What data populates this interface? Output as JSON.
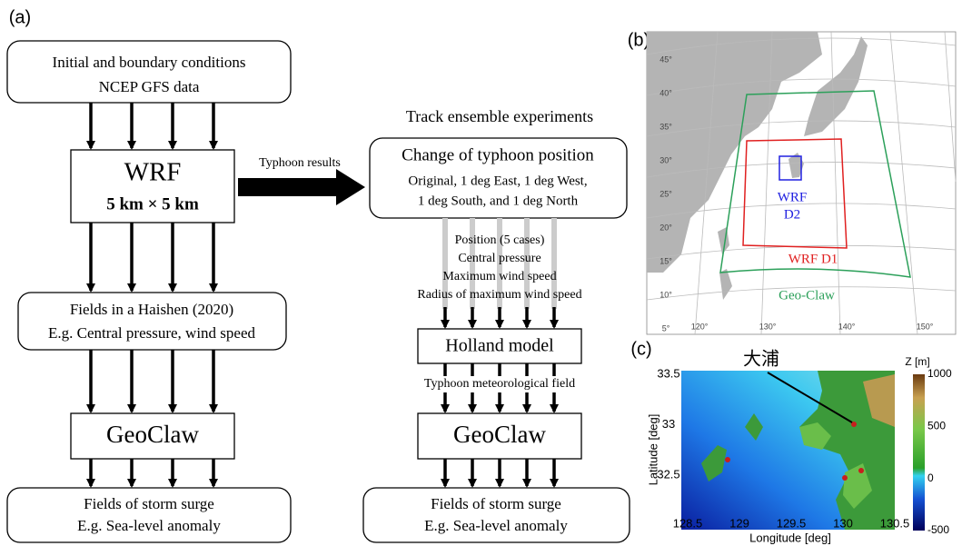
{
  "panels": {
    "a": "(a)",
    "b": "(b)",
    "c": "(c)"
  },
  "left_flow": {
    "inputs": [
      "Initial and boundary conditions",
      "NCEP GFS data"
    ],
    "wrf_title": "WRF",
    "wrf_resolution": "5 km × 5 km",
    "fields": [
      "Fields in a Haishen (2020)",
      "E.g. Central pressure, wind speed"
    ],
    "geoclaw": "GeoClaw",
    "surge": [
      "Fields of storm surge",
      "E.g. Sea-level anomaly"
    ]
  },
  "arrow_label": "Typhoon results",
  "right_flow": {
    "heading": "Track ensemble experiments",
    "change_title": "Change of typhoon position",
    "change_lines": [
      "Original, 1 deg East, 1 deg West,",
      "1 deg South, and 1 deg North"
    ],
    "parameters": [
      "Position (5 cases)",
      "Central pressure",
      "Maximum wind speed",
      "Radius of maximum wind speed"
    ],
    "holland": "Holland model",
    "field_label": "Typhoon meteorological field",
    "geoclaw": "GeoClaw",
    "surge": [
      "Fields of storm surge",
      "E.g. Sea-level anomaly"
    ]
  },
  "map_b": {
    "lat_labels": [
      "45°",
      "40°",
      "35°",
      "30°",
      "25°",
      "20°",
      "15°",
      "10°",
      "5°"
    ],
    "lon_labels": [
      "120°",
      "130°",
      "140°",
      "150°"
    ],
    "d2": [
      "WRF",
      "D2"
    ],
    "d1": "WRF D1",
    "geoclaw": "Geo-Claw"
  },
  "map_c": {
    "place": "大浦",
    "y_label": "Latitude [deg]",
    "x_label": "Longitude [deg]",
    "yticks": [
      33.5,
      33,
      32.5
    ],
    "xticks": [
      128.5,
      129,
      129.5,
      130,
      130.5
    ],
    "colorbar_title": "Z [m]",
    "colorbar_ticks": [
      1000,
      500,
      0,
      -500
    ]
  }
}
